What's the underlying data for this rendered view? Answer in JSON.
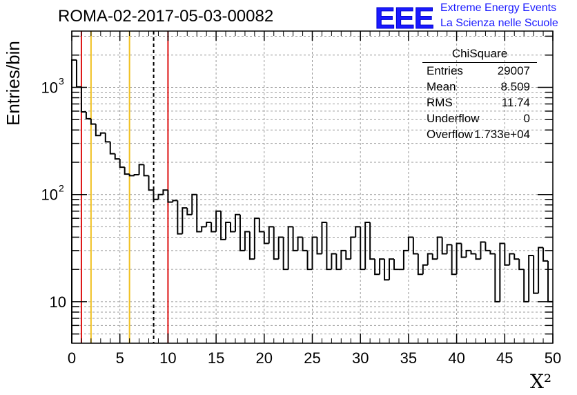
{
  "header": {
    "title": "ROMA-02-2017-05-03-00082",
    "logo_text": "EEE",
    "logo_line1": "Extreme Energy Events",
    "logo_line2": "La Scienza nelle Scuole"
  },
  "stats_box": {
    "title": "ChiSquare",
    "rows": [
      {
        "label": "Entries",
        "value": "29007"
      },
      {
        "label": "Mean",
        "value": "8.509"
      },
      {
        "label": "RMS",
        "value": "11.74"
      },
      {
        "label": "Underflow",
        "value": "0"
      },
      {
        "label": "Overflow",
        "value": "1.733e+04"
      }
    ]
  },
  "colors": {
    "histogram": "#000000",
    "red_lines": "#dd1111",
    "yellow_lines": "#f0c020",
    "mean_line": "#000000",
    "grid": "#9a9a9a",
    "logo": "#1a1aff"
  },
  "chart_data": {
    "type": "histogram",
    "title": "ROMA-02-2017-05-03-00082",
    "xlabel": "X²",
    "ylabel": "Entries/bin",
    "xlim": [
      0,
      50
    ],
    "ylim": [
      4.1,
      3350
    ],
    "ylog": true,
    "grid": true,
    "bin_width": 0.5,
    "x_ticks": [
      "0",
      "5",
      "10",
      "15",
      "20",
      "25",
      "30",
      "35",
      "40",
      "45",
      "50"
    ],
    "y_ticks": [
      {
        "value": 10,
        "label": "10"
      },
      {
        "value": 100,
        "label": "10",
        "exp": "2"
      },
      {
        "value": 1000,
        "label": "10",
        "exp": "3"
      }
    ],
    "values": [
      1800,
      1010,
      590,
      510,
      455,
      355,
      375,
      310,
      240,
      215,
      180,
      155,
      150,
      153,
      190,
      150,
      110,
      90,
      100,
      110,
      85,
      88,
      43,
      75,
      65,
      100,
      45,
      50,
      55,
      45,
      70,
      38,
      55,
      45,
      65,
      30,
      45,
      25,
      60,
      45,
      35,
      50,
      25,
      40,
      20,
      50,
      30,
      40,
      30,
      20,
      40,
      28,
      55,
      20,
      28,
      20,
      30,
      25,
      40,
      50,
      20,
      55,
      25,
      18,
      25,
      16,
      25,
      20,
      20,
      30,
      40,
      28,
      18,
      22,
      28,
      25,
      40,
      28,
      34,
      18,
      35,
      26,
      30,
      28,
      25,
      36,
      30,
      28,
      10,
      35,
      22,
      28,
      25,
      20,
      10,
      27,
      12,
      32,
      24,
      10
    ],
    "vlines": [
      {
        "x": 1,
        "color": "red",
        "style": "solid"
      },
      {
        "x": 2,
        "color": "yellow",
        "style": "solid"
      },
      {
        "x": 6,
        "color": "yellow",
        "style": "solid"
      },
      {
        "x": 8.509,
        "color": "black",
        "style": "dashed"
      },
      {
        "x": 10,
        "color": "red",
        "style": "solid"
      }
    ]
  }
}
